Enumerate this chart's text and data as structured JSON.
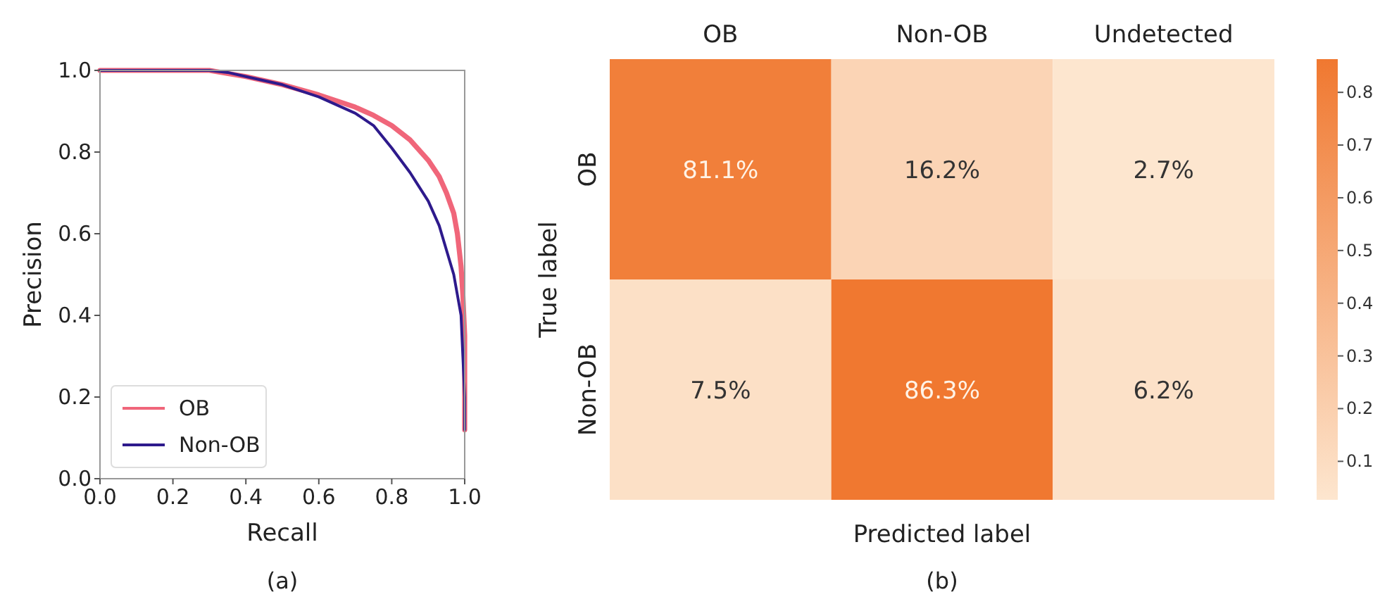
{
  "chart_data": [
    {
      "type": "line",
      "xlabel": "Recall",
      "ylabel": "Precision",
      "xlim": [
        0,
        1
      ],
      "ylim": [
        0,
        1
      ],
      "xticks": [
        {
          "value": 0,
          "label": "0.0"
        },
        0.2,
        0.4,
        0.6,
        0.8,
        {
          "value": 1,
          "label": "1.0"
        }
      ],
      "yticks": [
        {
          "value": 0,
          "label": "0.0"
        },
        0.2,
        0.4,
        0.6,
        0.8,
        {
          "value": 1,
          "label": "1.0"
        }
      ],
      "grid": false,
      "legend": "bottom left",
      "annotations": [
        "(a)"
      ],
      "series": [
        {
          "name": "OB",
          "color": "#f0667a",
          "x": [
            0,
            0.3,
            0.4,
            0.5,
            0.6,
            0.7,
            0.75,
            0.8,
            0.85,
            0.9,
            0.93,
            0.95,
            0.97,
            0.98,
            0.99,
            0.995,
            1.0,
            1.0
          ],
          "values": [
            1,
            1,
            0.985,
            0.965,
            0.94,
            0.91,
            0.89,
            0.865,
            0.83,
            0.78,
            0.74,
            0.7,
            0.65,
            0.6,
            0.52,
            0.45,
            0.35,
            0.12
          ]
        },
        {
          "name": "Non-OB",
          "color": "#2e1a8c",
          "x": [
            0,
            0.3,
            0.35,
            0.4,
            0.5,
            0.6,
            0.7,
            0.75,
            0.8,
            0.85,
            0.9,
            0.93,
            0.95,
            0.97,
            0.98,
            0.99,
            0.995,
            1.0,
            1.0
          ],
          "values": [
            1,
            1,
            0.995,
            0.985,
            0.965,
            0.935,
            0.895,
            0.865,
            0.81,
            0.75,
            0.68,
            0.62,
            0.56,
            0.5,
            0.45,
            0.4,
            0.3,
            0.2,
            0.12
          ]
        }
      ]
    },
    {
      "type": "heatmap",
      "xlabel": "Predicted label",
      "ylabel": "True label",
      "annotations": [
        "(b)"
      ],
      "categories": [
        "OB",
        "Non-OB",
        "Undetected"
      ],
      "y_categories": [
        "OB",
        "Non-OB"
      ],
      "cells": [
        [
          0.811,
          0.162,
          0.027
        ],
        [
          0.075,
          0.863,
          0.062
        ]
      ],
      "cell_labels": [
        [
          "81.1%",
          "16.2%",
          "2.7%"
        ],
        [
          "7.5%",
          "86.3%",
          "6.2%"
        ]
      ],
      "clim": [
        0.027,
        0.863
      ],
      "cticks": [
        0.1,
        0.2,
        0.3,
        0.4,
        0.5,
        0.6,
        0.7,
        0.8
      ],
      "colors": [
        "#fde6cf",
        "#f07830"
      ]
    }
  ]
}
